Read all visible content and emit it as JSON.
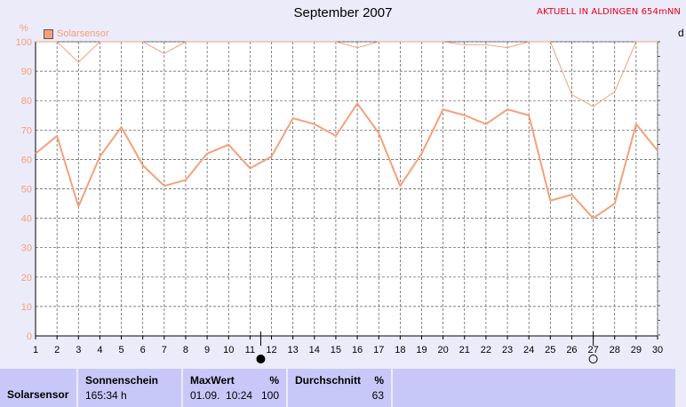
{
  "header": {
    "title": "September 2007",
    "station": "AKTUELL IN ALDINGEN 654mNN",
    "legend": "Solarsensor",
    "unit": "%",
    "corner": "d"
  },
  "colors": {
    "series": "#f6a07a",
    "grid": "#555555",
    "plot_bg": "#ffffff",
    "axis": "#000000"
  },
  "chart_data": {
    "type": "line",
    "xlabel": "",
    "ylabel": "%",
    "xlim": [
      1,
      30
    ],
    "ylim": [
      0,
      100
    ],
    "grid": true,
    "legend_position": "top-left",
    "x": [
      1,
      2,
      3,
      4,
      5,
      6,
      7,
      8,
      9,
      10,
      11,
      12,
      13,
      14,
      15,
      16,
      17,
      18,
      19,
      20,
      21,
      22,
      23,
      24,
      25,
      26,
      27,
      28,
      29,
      30
    ],
    "x_ticks": [
      "1",
      "2",
      "3",
      "4",
      "5",
      "6",
      "7",
      "8",
      "9",
      "10",
      "11",
      "12",
      "13",
      "14",
      "15",
      "16",
      "17",
      "18",
      "19",
      "20",
      "21",
      "22",
      "23",
      "24",
      "25",
      "26",
      "27",
      "28",
      "29",
      "30"
    ],
    "y_ticks": [
      "0",
      "10",
      "20",
      "30",
      "40",
      "50",
      "60",
      "70",
      "80",
      "90",
      "100"
    ],
    "series": [
      {
        "name": "Solarsensor",
        "values": [
          62,
          68,
          44,
          61,
          71,
          58,
          51,
          53,
          62,
          65,
          57,
          61,
          74,
          72,
          68,
          79,
          69,
          51,
          62,
          77,
          75,
          72,
          77,
          75,
          46,
          48,
          40,
          45,
          72,
          63
        ]
      },
      {
        "name": "",
        "values": [
          100,
          100,
          93,
          100,
          100,
          100,
          96,
          100,
          100,
          100,
          100,
          100,
          100,
          100,
          100,
          98,
          100,
          100,
          100,
          100,
          99,
          99,
          98,
          100,
          100,
          82,
          78,
          83,
          100,
          100
        ]
      }
    ],
    "markers": [
      {
        "x": 11.5,
        "symbol": "new-moon"
      },
      {
        "x": 27,
        "symbol": "full-moon"
      }
    ]
  },
  "table": {
    "row_label": "Solarsensor",
    "sunshine_header": "Sonnenschein",
    "sunshine_value": "165:34 h",
    "max_header": "MaxWert",
    "max_unit": "%",
    "max_time": "01.09.  10:24",
    "max_value": "100",
    "avg_header": "Durchschnitt",
    "avg_unit": "%",
    "avg_value": "63"
  }
}
